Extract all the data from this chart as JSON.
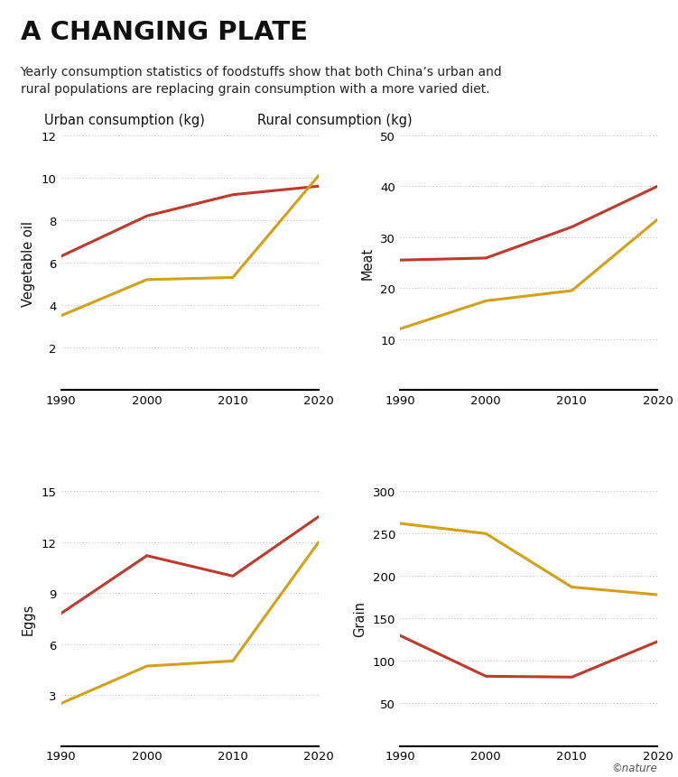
{
  "title": "A CHANGING PLATE",
  "subtitle": "Yearly consumption statistics of foodstuffs show that both China’s urban and\nrural populations are replacing grain consumption with a more varied diet.",
  "legend_urban": "Urban consumption (kg)",
  "legend_rural": "Rural consumption (kg)",
  "urban_color": "#c0392b",
  "rural_color": "#d4a017",
  "years": [
    1990,
    2000,
    2010,
    2020
  ],
  "charts": [
    {
      "label": "Vegetable oil",
      "urban": [
        6.3,
        8.2,
        9.2,
        9.6
      ],
      "rural": [
        3.5,
        5.2,
        5.3,
        10.1
      ],
      "ylim": [
        0,
        12
      ],
      "yticks": [
        0,
        2,
        4,
        6,
        8,
        10,
        12
      ],
      "grid_ticks": [
        2,
        4,
        6,
        8,
        10,
        12
      ]
    },
    {
      "label": "Meat",
      "urban": [
        25.5,
        25.9,
        32.0,
        40.0
      ],
      "rural": [
        12.0,
        17.5,
        19.5,
        33.5
      ],
      "ylim": [
        0,
        50
      ],
      "yticks": [
        0,
        10,
        20,
        30,
        40,
        50
      ],
      "grid_ticks": [
        10,
        20,
        30,
        40,
        50
      ]
    },
    {
      "label": "Eggs",
      "urban": [
        7.8,
        11.2,
        10.0,
        13.5
      ],
      "rural": [
        2.5,
        4.7,
        5.0,
        12.0
      ],
      "ylim": [
        0,
        15
      ],
      "yticks": [
        0,
        3,
        6,
        9,
        12,
        15
      ],
      "grid_ticks": [
        3,
        6,
        9,
        12,
        15
      ]
    },
    {
      "label": "Grain",
      "urban": [
        130.0,
        82.0,
        81.0,
        123.0
      ],
      "rural": [
        262.0,
        250.0,
        187.0,
        178.0
      ],
      "ylim": [
        0,
        300
      ],
      "yticks": [
        0,
        50,
        100,
        150,
        200,
        250,
        300
      ],
      "grid_ticks": [
        50,
        100,
        150,
        200,
        250,
        300
      ]
    }
  ],
  "background_color": "#ffffff",
  "nature_credit": "©nature"
}
